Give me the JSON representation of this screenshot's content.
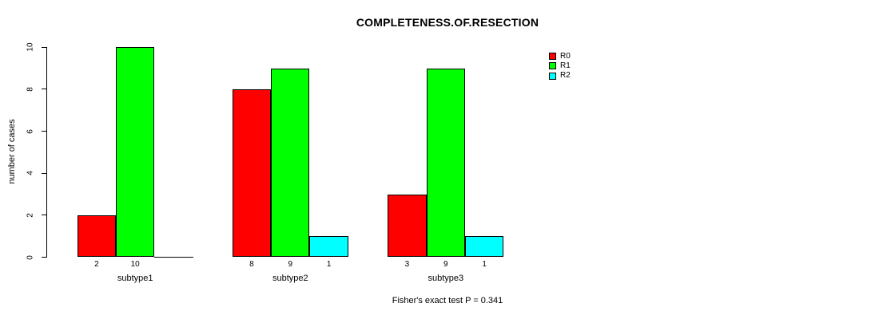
{
  "chart_data": {
    "type": "bar",
    "title": "COMPLETENESS.OF.RESECTION",
    "xlabel": "",
    "ylabel": "number of cases",
    "ylim": [
      0,
      10
    ],
    "yticks": [
      0,
      2,
      4,
      6,
      8,
      10
    ],
    "categories": [
      "subtype1",
      "subtype2",
      "subtype3"
    ],
    "series": [
      {
        "name": "R0",
        "color": "#FF0000",
        "values": [
          2,
          8,
          3
        ]
      },
      {
        "name": "R1",
        "color": "#00FF00",
        "values": [
          10,
          9,
          9
        ]
      },
      {
        "name": "R2",
        "color": "#00FFFF",
        "values": [
          0,
          1,
          1
        ]
      }
    ],
    "bar_value_labels": [
      [
        "2",
        "8",
        "3"
      ],
      [
        "10",
        "9",
        "9"
      ],
      [
        "",
        "1",
        "1"
      ]
    ],
    "legend": {
      "position": "top-right",
      "entries": [
        "R0",
        "R1",
        "R2"
      ]
    },
    "annotation": "Fisher's exact test P = 0.341",
    "grid": false,
    "background": "#FFFFFF",
    "axis_color": "#000000"
  }
}
